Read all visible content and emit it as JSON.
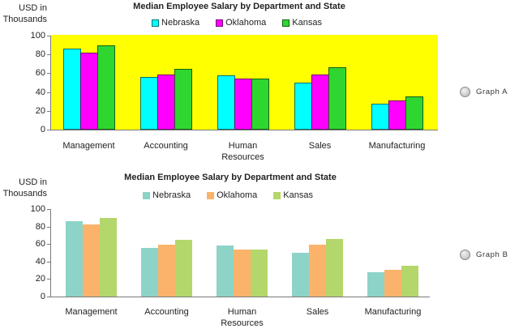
{
  "chart_data": [
    {
      "type": "bar",
      "title": "Median Employee Salary by Department and State",
      "xlabel": "",
      "ylabel": "USD in Thousands",
      "categories": [
        "Management",
        "Accounting",
        "Human Resources",
        "Sales",
        "Manufacturing"
      ],
      "series": [
        {
          "name": "Nebraska",
          "values": [
            86,
            56,
            58,
            50,
            28
          ],
          "color": "#00ffff"
        },
        {
          "name": "Oklahoma",
          "values": [
            82,
            59,
            54,
            59,
            31
          ],
          "color": "#ff00ff"
        },
        {
          "name": "Kansas",
          "values": [
            90,
            65,
            54,
            66,
            35
          ],
          "color": "#30d630"
        }
      ],
      "ylim": [
        0,
        100
      ],
      "yticks": [
        0,
        20,
        40,
        60,
        80,
        100
      ],
      "grid": false,
      "legend": "top",
      "plot_background": "#ffff00"
    },
    {
      "type": "bar",
      "title": "Median Employee Salary by Department and State",
      "xlabel": "",
      "ylabel": "USD in Thousands",
      "categories": [
        "Management",
        "Accounting",
        "Human Resources",
        "Sales",
        "Manufacturing"
      ],
      "series": [
        {
          "name": "Nebraska",
          "values": [
            86,
            56,
            58,
            50,
            28
          ],
          "color": "#8dd3c7"
        },
        {
          "name": "Oklahoma",
          "values": [
            82,
            59,
            54,
            59,
            31
          ],
          "color": "#fbb36b"
        },
        {
          "name": "Kansas",
          "values": [
            90,
            65,
            54,
            66,
            35
          ],
          "color": "#b3d76a"
        }
      ],
      "ylim": [
        0,
        100
      ],
      "yticks": [
        0,
        20,
        40,
        60,
        80,
        100
      ],
      "grid": false,
      "legend": "top",
      "plot_background": "#ffffff"
    }
  ],
  "graph_selector": {
    "options": [
      {
        "label": "Graph A",
        "checked": false
      },
      {
        "label": "Graph B",
        "checked": false
      }
    ]
  }
}
